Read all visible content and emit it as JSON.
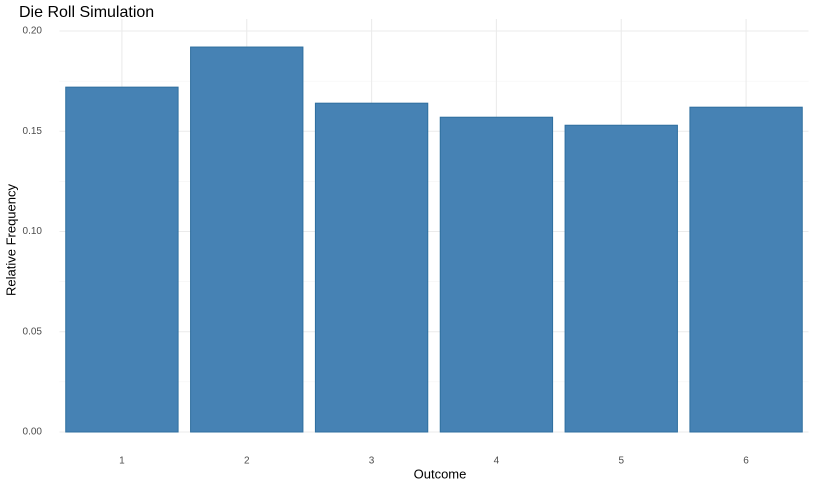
{
  "chart_data": {
    "type": "bar",
    "title": "Die Roll Simulation",
    "x_label": "Outcome",
    "y_label": "Relative Frequency",
    "categories": [
      "1",
      "2",
      "3",
      "4",
      "5",
      "6"
    ],
    "values": [
      0.172,
      0.192,
      0.164,
      0.157,
      0.153,
      0.162
    ],
    "color": "#4682b4",
    "ylim": [
      0,
      0.2
    ],
    "yticks": [
      {
        "value": 0,
        "label": "0.00"
      },
      {
        "value": 0.05,
        "label": "0.05"
      },
      {
        "value": 0.1,
        "label": "0.10"
      },
      {
        "value": 0.15,
        "label": "0.15"
      },
      {
        "value": 0.2,
        "label": "0.20"
      }
    ],
    "grid": true
  }
}
